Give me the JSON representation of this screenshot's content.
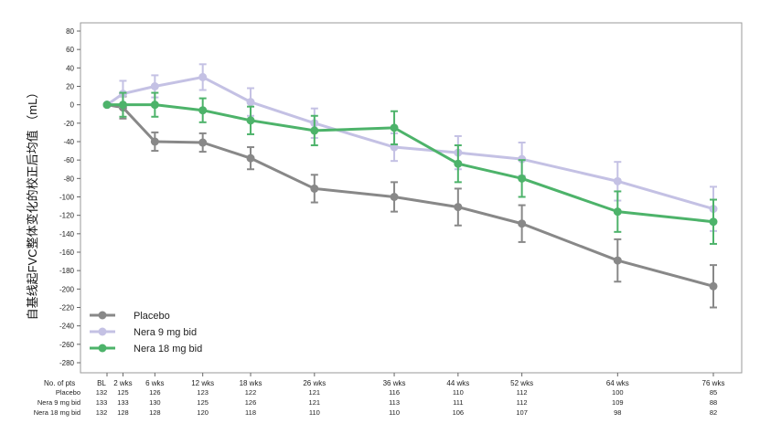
{
  "chart_data": {
    "type": "line",
    "title": "",
    "ylabel": "自基线起FVC整体变化的校正后均值 （mL）",
    "ylim": [
      -280,
      80
    ],
    "yticks": [
      80,
      60,
      40,
      20,
      0,
      -20,
      -40,
      -60,
      -80,
      -100,
      -120,
      -140,
      -160,
      -180,
      -200,
      -220,
      -240,
      -260,
      -280
    ],
    "x_timepoints": [
      0,
      2,
      6,
      12,
      18,
      26,
      36,
      44,
      52,
      64,
      76
    ],
    "x_labels": [
      "BL",
      "2 wks",
      "6 wks",
      "12 wks",
      "18 wks",
      "26 wks",
      "36 wks",
      "44 wks",
      "52 wks",
      "64 wks",
      "76 wks"
    ],
    "legend_position": "bottom-left",
    "series": [
      {
        "name": "Placebo",
        "color": "#888888",
        "values": [
          0,
          -3,
          -40,
          -41,
          -58,
          -91,
          -100,
          -111,
          -129,
          -169,
          -197
        ],
        "err": [
          0,
          12,
          10,
          10,
          12,
          15,
          16,
          20,
          20,
          23,
          23
        ]
      },
      {
        "name": "Nera 9 mg bid",
        "color": "#c4c1e4",
        "values": [
          0,
          12,
          20,
          30,
          3,
          -20,
          -46,
          -52,
          -59,
          -83,
          -113
        ],
        "err": [
          0,
          14,
          12,
          14,
          15,
          16,
          15,
          18,
          18,
          21,
          24
        ]
      },
      {
        "name": "Nera 18 mg bid",
        "color": "#4db36a",
        "values": [
          0,
          0,
          0,
          -6,
          -17,
          -28,
          -25,
          -64,
          -80,
          -116,
          -127
        ],
        "err": [
          0,
          13,
          13,
          13,
          15,
          16,
          18,
          20,
          20,
          22,
          24
        ]
      }
    ],
    "table": {
      "header_label": "No. of pts",
      "rows": [
        {
          "label": "Placebo",
          "values": [
            "132",
            "125",
            "126",
            "123",
            "122",
            "121",
            "116",
            "110",
            "112",
            "100",
            "85"
          ]
        },
        {
          "label": "Nera 9 mg bid",
          "values": [
            "133",
            "133",
            "130",
            "125",
            "126",
            "121",
            "113",
            "111",
            "112",
            "109",
            "88"
          ]
        },
        {
          "label": "Nera 18 mg bid",
          "values": [
            "132",
            "128",
            "128",
            "120",
            "118",
            "110",
            "110",
            "106",
            "107",
            "98",
            "82"
          ]
        }
      ]
    }
  }
}
